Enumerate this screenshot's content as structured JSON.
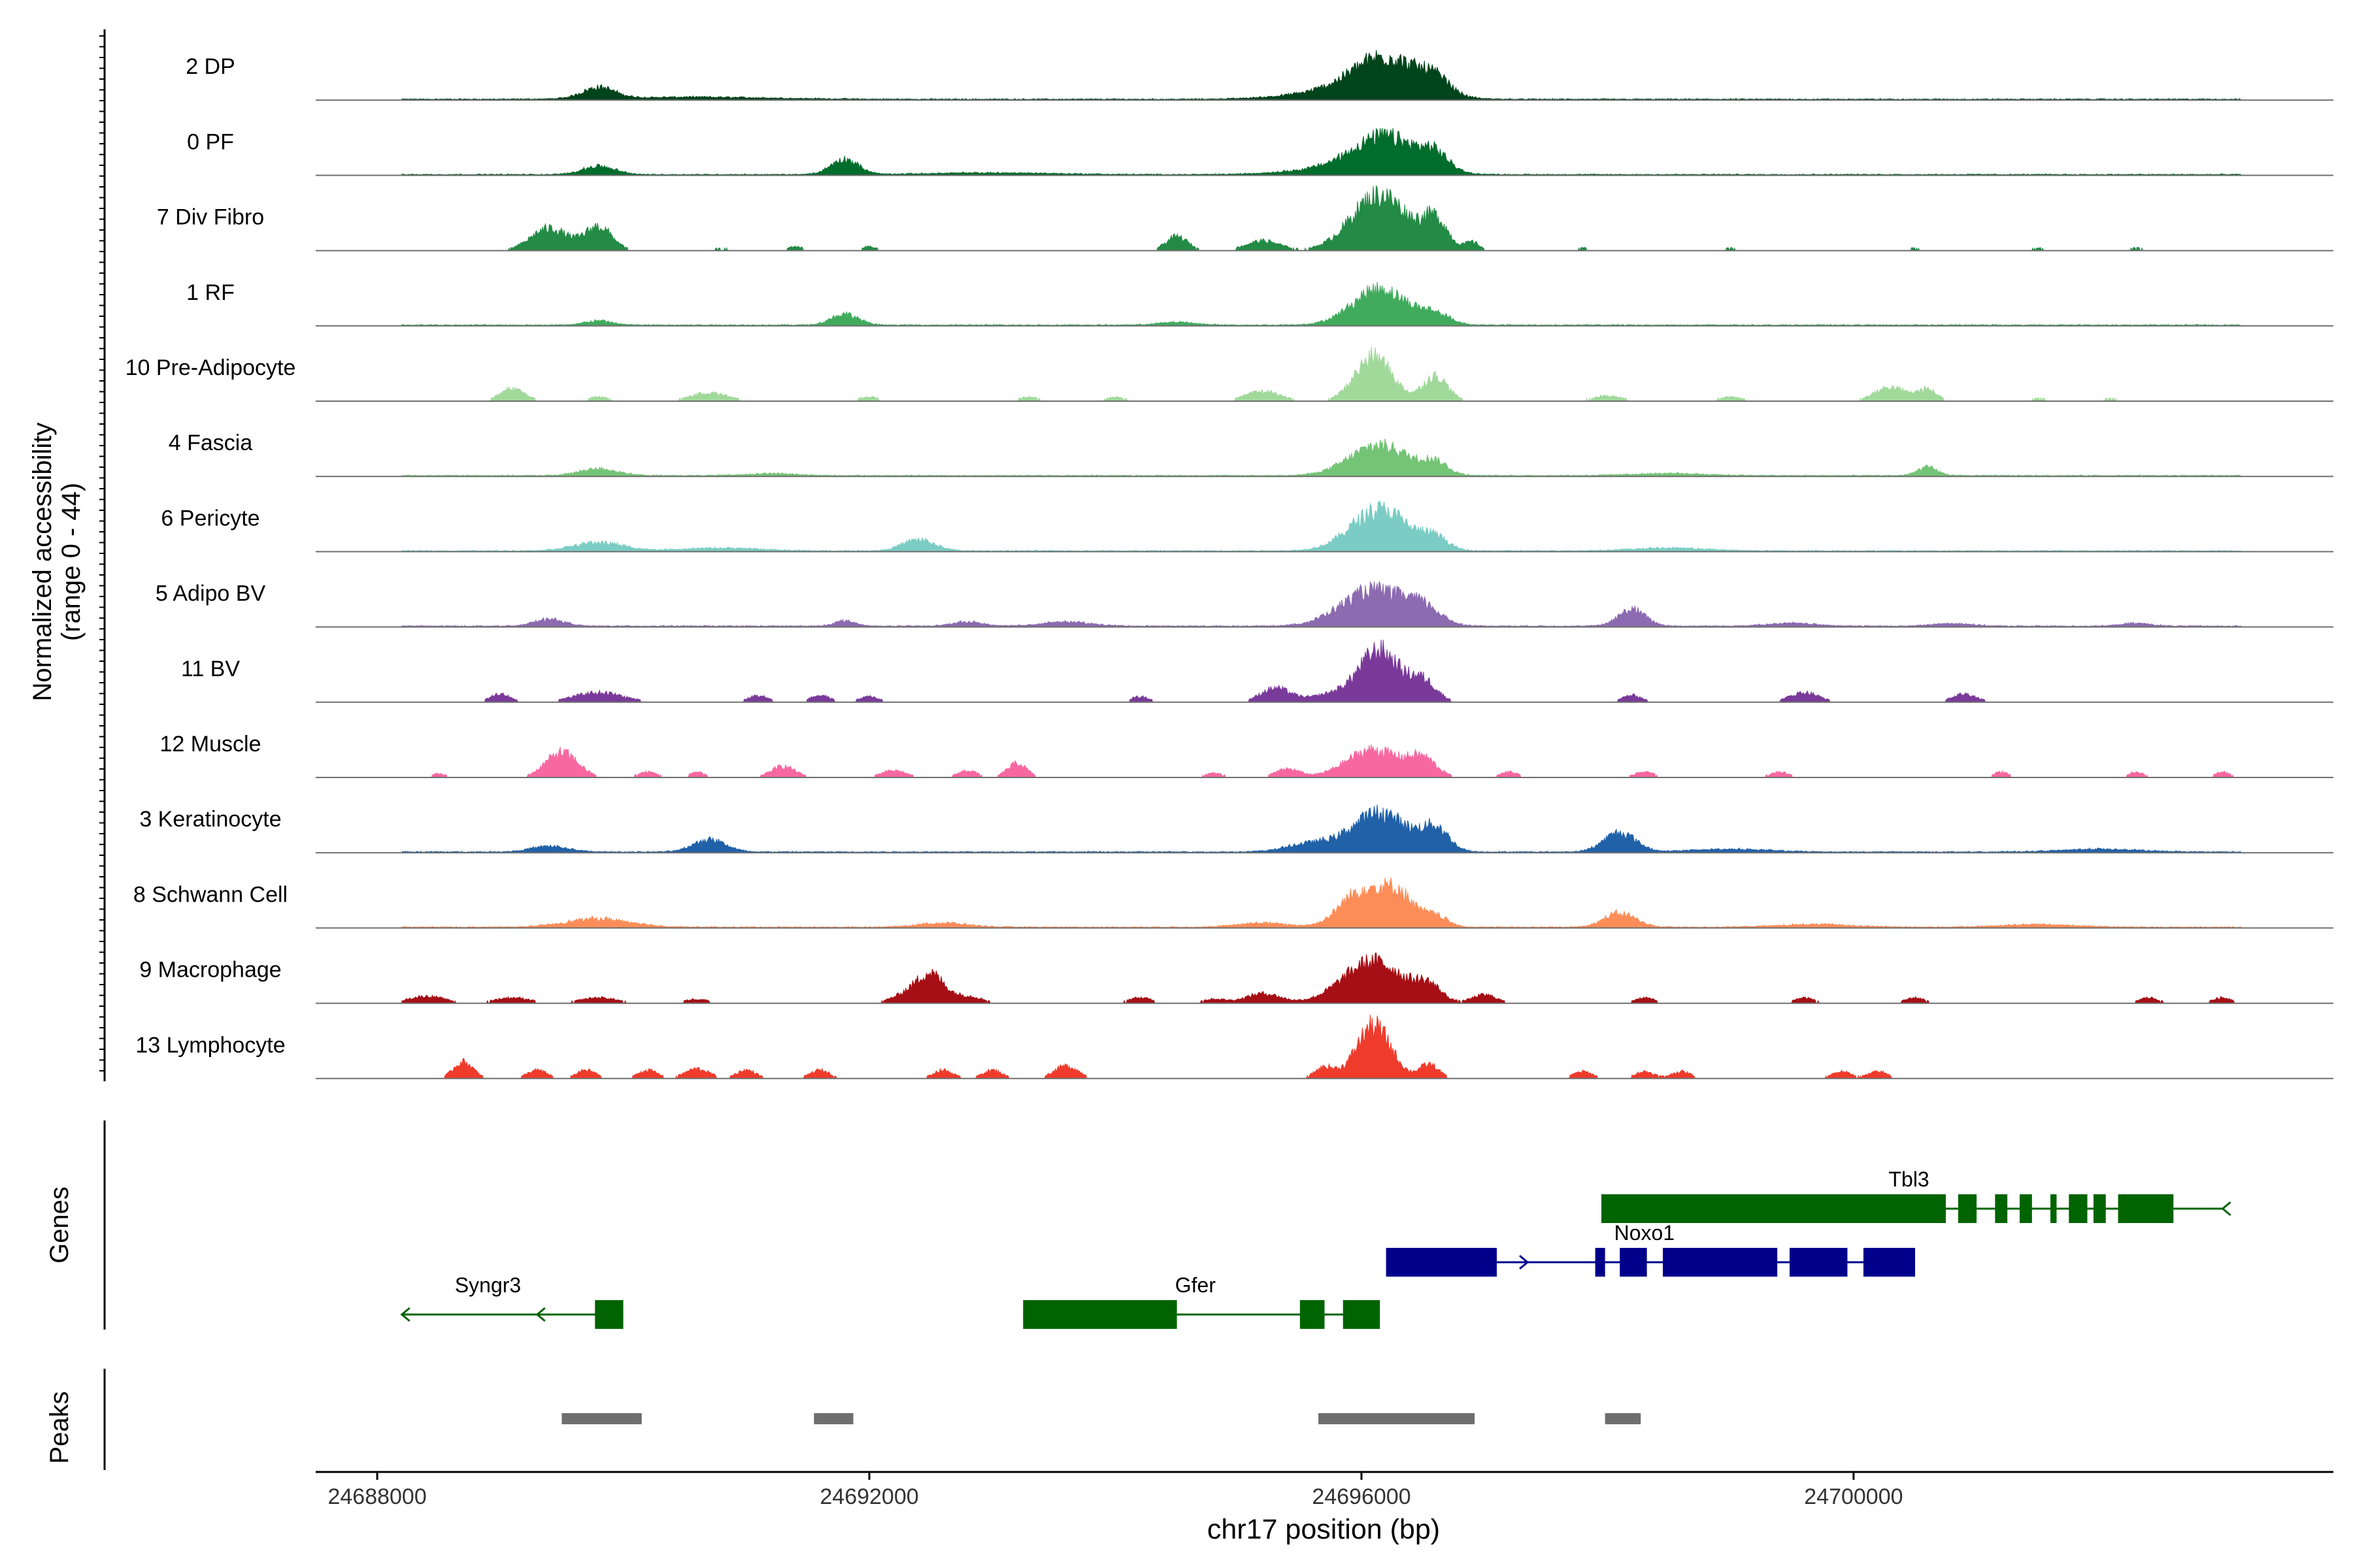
{
  "chart_data": {
    "type": "area",
    "title": "",
    "xlabel": "chr17 position (bp)",
    "ylabel_lines": [
      "Normalized accessibility",
      "(range 0 - 44)"
    ],
    "ylim": [
      0,
      44
    ],
    "xlim": [
      24687500,
      24703900
    ],
    "x_ticks": [
      24688000,
      24692000,
      24696000,
      24700000
    ],
    "x_tick_labels": [
      "24688000",
      "24692000",
      "24696000",
      "24700000"
    ],
    "section_labels": {
      "genes": "Genes",
      "peaks": "Peaks"
    },
    "tracks": [
      {
        "name": "2 DP",
        "color": "#00441b",
        "dense": true,
        "peaks": [
          [
            24689800,
            130,
            8
          ],
          [
            24696200,
            260,
            26
          ],
          [
            24696600,
            120,
            10
          ],
          [
            24695900,
            420,
            6
          ],
          [
            24690600,
            600,
            1.5
          ]
        ]
      },
      {
        "name": "0 PF",
        "color": "#006d2c",
        "dense": true,
        "peaks": [
          [
            24689800,
            130,
            6
          ],
          [
            24691800,
            110,
            11
          ],
          [
            24696200,
            250,
            24
          ],
          [
            24696600,
            110,
            11
          ],
          [
            24695900,
            400,
            5
          ],
          [
            24693000,
            500,
            1.2
          ]
        ]
      },
      {
        "name": "7 Div Fibro",
        "color": "#238b45",
        "dense": false,
        "peaks": [
          [
            24689400,
            150,
            16
          ],
          [
            24689800,
            110,
            17
          ],
          [
            24694500,
            90,
            10
          ],
          [
            24695200,
            140,
            7
          ],
          [
            24696150,
            230,
            40
          ],
          [
            24696600,
            100,
            20
          ],
          [
            24696900,
            60,
            6
          ],
          [
            24692000,
            60,
            3
          ],
          [
            24691400,
            60,
            3
          ],
          [
            24690800,
            60,
            2
          ],
          [
            24697800,
            60,
            2
          ],
          [
            24699000,
            60,
            2
          ],
          [
            24700500,
            60,
            2
          ],
          [
            24701500,
            60,
            2
          ],
          [
            24702300,
            60,
            2
          ]
        ]
      },
      {
        "name": "1 RF",
        "color": "#41ab5d",
        "dense": true,
        "peaks": [
          [
            24691800,
            110,
            8
          ],
          [
            24696150,
            220,
            26
          ],
          [
            24696600,
            120,
            7
          ],
          [
            24689800,
            110,
            3
          ],
          [
            24694500,
            150,
            2
          ]
        ]
      },
      {
        "name": "10 Pre-Adipocyte",
        "color": "#a1d99b",
        "dense": false,
        "peaks": [
          [
            24689100,
            100,
            9
          ],
          [
            24690700,
            150,
            6
          ],
          [
            24695200,
            140,
            7
          ],
          [
            24696100,
            150,
            32
          ],
          [
            24696600,
            100,
            18
          ],
          [
            24700300,
            130,
            10
          ],
          [
            24700600,
            80,
            8
          ],
          [
            24698000,
            120,
            4
          ],
          [
            24699000,
            100,
            3
          ],
          [
            24692000,
            80,
            3
          ],
          [
            24693300,
            80,
            3
          ],
          [
            24694000,
            80,
            3
          ],
          [
            24701500,
            80,
            2
          ],
          [
            24702100,
            80,
            2
          ],
          [
            24689800,
            80,
            3
          ]
        ]
      },
      {
        "name": "4 Fascia",
        "color": "#74c476",
        "dense": true,
        "peaks": [
          [
            24689800,
            150,
            5
          ],
          [
            24696150,
            240,
            22
          ],
          [
            24696600,
            100,
            8
          ],
          [
            24700600,
            80,
            6
          ],
          [
            24691200,
            200,
            1.5
          ],
          [
            24698500,
            300,
            1.5
          ]
        ]
      },
      {
        "name": "6 Pericyte",
        "color": "#7bccc4",
        "dense": true,
        "peaks": [
          [
            24689800,
            200,
            6
          ],
          [
            24692400,
            130,
            8
          ],
          [
            24696150,
            230,
            30
          ],
          [
            24696600,
            100,
            8
          ],
          [
            24698500,
            300,
            2
          ],
          [
            24690800,
            300,
            2
          ]
        ]
      },
      {
        "name": "5 Adipo BV",
        "color": "#8c6bb1",
        "dense": true,
        "peaks": [
          [
            24689400,
            120,
            5
          ],
          [
            24691800,
            80,
            4
          ],
          [
            24696100,
            260,
            26
          ],
          [
            24696500,
            140,
            10
          ],
          [
            24698200,
            110,
            12
          ],
          [
            24693600,
            200,
            3
          ],
          [
            24692800,
            120,
            3
          ],
          [
            24699500,
            200,
            2
          ],
          [
            24700800,
            150,
            2
          ],
          [
            24702300,
            120,
            2
          ]
        ]
      },
      {
        "name": "11 BV",
        "color": "#7a3a9a",
        "dense": false,
        "peaks": [
          [
            24689000,
            80,
            6
          ],
          [
            24689800,
            200,
            7
          ],
          [
            24691100,
            80,
            5
          ],
          [
            24691600,
            80,
            5
          ],
          [
            24692000,
            80,
            4
          ],
          [
            24694200,
            80,
            4
          ],
          [
            24695300,
            120,
            10
          ],
          [
            24696150,
            160,
            36
          ],
          [
            24696500,
            110,
            15
          ],
          [
            24698200,
            80,
            5
          ],
          [
            24699600,
            120,
            7
          ],
          [
            24700900,
            100,
            6
          ],
          [
            24695800,
            200,
            6
          ]
        ]
      },
      {
        "name": "12 Muscle",
        "color": "#f768a1",
        "dense": false,
        "peaks": [
          [
            24688500,
            60,
            3
          ],
          [
            24689500,
            130,
            18
          ],
          [
            24690600,
            60,
            4
          ],
          [
            24691300,
            100,
            8
          ],
          [
            24692200,
            100,
            5
          ],
          [
            24692800,
            80,
            5
          ],
          [
            24693200,
            80,
            10
          ],
          [
            24695400,
            100,
            6
          ],
          [
            24696100,
            220,
            20
          ],
          [
            24696500,
            110,
            12
          ],
          [
            24697200,
            70,
            4
          ],
          [
            24698300,
            80,
            4
          ],
          [
            24699400,
            80,
            4
          ],
          [
            24701200,
            60,
            4
          ],
          [
            24702300,
            60,
            4
          ],
          [
            24703000,
            60,
            4
          ],
          [
            24690200,
            80,
            4
          ],
          [
            24694800,
            80,
            3
          ]
        ]
      },
      {
        "name": "3 Keratinocyte",
        "color": "#2161a8",
        "dense": true,
        "peaks": [
          [
            24690700,
            130,
            9
          ],
          [
            24689400,
            150,
            4
          ],
          [
            24696150,
            220,
            28
          ],
          [
            24696600,
            110,
            16
          ],
          [
            24698100,
            130,
            14
          ],
          [
            24695600,
            200,
            6
          ],
          [
            24699000,
            300,
            2
          ],
          [
            24702000,
            300,
            2
          ]
        ]
      },
      {
        "name": "8 Schwann Cell",
        "color": "#fc8d59",
        "dense": true,
        "peaks": [
          [
            24689800,
            260,
            6
          ],
          [
            24696000,
            170,
            26
          ],
          [
            24696300,
            130,
            22
          ],
          [
            24696600,
            100,
            8
          ],
          [
            24698100,
            130,
            10
          ],
          [
            24692600,
            200,
            3
          ],
          [
            24695200,
            200,
            3
          ],
          [
            24699700,
            300,
            2
          ],
          [
            24701500,
            300,
            2
          ]
        ]
      },
      {
        "name": "9 Macrophage",
        "color": "#a50f15",
        "dense": false,
        "peaks": [
          [
            24688400,
            150,
            5
          ],
          [
            24689100,
            150,
            4
          ],
          [
            24689800,
            150,
            4
          ],
          [
            24692300,
            120,
            6
          ],
          [
            24692500,
            110,
            20
          ],
          [
            24692800,
            120,
            5
          ],
          [
            24694200,
            100,
            4
          ],
          [
            24695200,
            140,
            7
          ],
          [
            24696100,
            250,
            30
          ],
          [
            24696550,
            100,
            10
          ],
          [
            24697000,
            100,
            6
          ],
          [
            24698300,
            80,
            4
          ],
          [
            24699600,
            80,
            4
          ],
          [
            24700500,
            80,
            4
          ],
          [
            24702400,
            80,
            4
          ],
          [
            24703000,
            80,
            4
          ],
          [
            24694800,
            100,
            3
          ],
          [
            24690600,
            100,
            3
          ]
        ]
      },
      {
        "name": "13 Lymphocyte",
        "color": "#ef3b2c",
        "dense": false,
        "peaks": [
          [
            24688700,
            80,
            12
          ],
          [
            24689300,
            80,
            6
          ],
          [
            24689700,
            80,
            6
          ],
          [
            24690200,
            80,
            6
          ],
          [
            24690600,
            100,
            7
          ],
          [
            24691000,
            80,
            6
          ],
          [
            24691600,
            80,
            6
          ],
          [
            24692600,
            80,
            6
          ],
          [
            24693000,
            80,
            6
          ],
          [
            24693600,
            100,
            9
          ],
          [
            24695700,
            80,
            8
          ],
          [
            24696100,
            140,
            38
          ],
          [
            24696550,
            80,
            10
          ],
          [
            24697800,
            80,
            5
          ],
          [
            24698300,
            80,
            5
          ],
          [
            24698600,
            80,
            5
          ],
          [
            24699900,
            80,
            5
          ],
          [
            24700200,
            80,
            5
          ]
        ]
      }
    ],
    "genes": [
      {
        "name": "Tbl3",
        "strand": "-",
        "color": "#006400",
        "row": 0,
        "start": 24697950,
        "end": 24703000,
        "label_pos": 24700450,
        "exons": [
          [
            24697950,
            24700750
          ],
          [
            24700850,
            24701000
          ],
          [
            24701150,
            24701250
          ],
          [
            24701350,
            24701450
          ],
          [
            24701600,
            24701650
          ],
          [
            24701750,
            24701900
          ],
          [
            24701950,
            24702050
          ],
          [
            24702150,
            24702600
          ]
        ]
      },
      {
        "name": "Noxo1",
        "strand": "+",
        "color": "#00008b",
        "row": 1,
        "start": 24696200,
        "end": 24700500,
        "label_pos": 24698300,
        "exons": [
          [
            24696200,
            24697100
          ],
          [
            24697900,
            24697980
          ],
          [
            24698100,
            24698320
          ],
          [
            24698450,
            24699380
          ],
          [
            24699480,
            24699950
          ],
          [
            24700080,
            24700500
          ]
        ]
      },
      {
        "name": "Syngr3",
        "strand": "-",
        "color": "#006400",
        "row": 2,
        "start": 24688200,
        "end": 24690000,
        "label_pos": 24688900,
        "exons": [
          [
            24689770,
            24690000
          ]
        ]
      },
      {
        "name": "Gfer",
        "strand": "-",
        "color": "#006400",
        "row": 2,
        "start": 24693250,
        "end": 24696150,
        "label_pos": 24694650,
        "exons": [
          [
            24693250,
            24694500
          ],
          [
            24695500,
            24695700
          ],
          [
            24695850,
            24696150
          ]
        ]
      }
    ],
    "peaks": [
      [
        24689500,
        24690150
      ],
      [
        24691550,
        24691870
      ],
      [
        24695650,
        24696920
      ],
      [
        24697980,
        24698270
      ]
    ]
  }
}
